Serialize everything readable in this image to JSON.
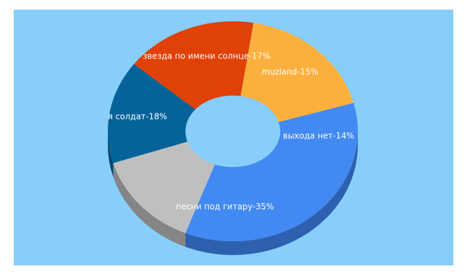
{
  "chart_data": {
    "type": "pie",
    "style": "3d-donut",
    "background": "#87CEFA",
    "slices": [
      {
        "label": "песни под гитару",
        "value": 35,
        "text": "песни под гитару-35%",
        "color": "#4289F2",
        "side": "#2D60AE"
      },
      {
        "label": "выхода нет",
        "value": 14,
        "text": "выхода нет-14%",
        "color": "#BFBFBF",
        "side": "#858585"
      },
      {
        "label": "muzland",
        "value": 15,
        "text": "muzland-15%",
        "color": "#056399",
        "side": "#03456B"
      },
      {
        "label": "звезда по имени солнце",
        "value": 17,
        "text": "звезда по имени солнце-17%",
        "color": "#E04106",
        "side": "#9D2E04"
      },
      {
        "label": "я солдат",
        "value": 18,
        "text": "я солдат-18%",
        "color": "#FBB03E",
        "side": "#B07B2B"
      }
    ]
  }
}
